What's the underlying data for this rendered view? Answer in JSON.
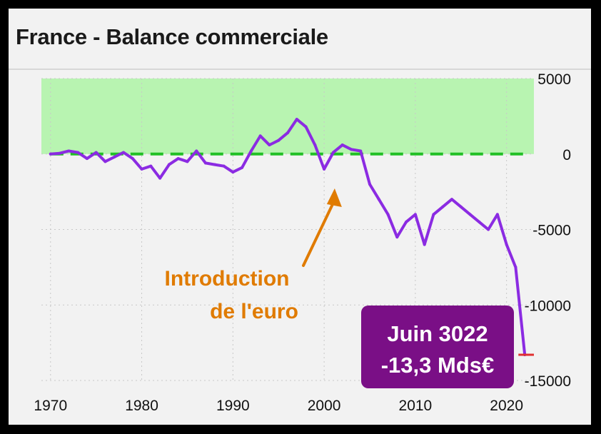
{
  "title": "France - Balance commerciale",
  "chart_data": {
    "type": "line",
    "title": "France - Balance commerciale",
    "xlabel": "",
    "ylabel": "",
    "xlim": [
      1969,
      2023
    ],
    "ylim": [
      -15000,
      5000
    ],
    "x_ticks": [
      1970,
      1980,
      1990,
      2000,
      2010,
      2020
    ],
    "y_ticks": [
      5000,
      0,
      -5000,
      -10000,
      -15000
    ],
    "y_tick_labels": [
      "5000",
      "0",
      "-5000",
      "-10000",
      "-15000"
    ],
    "grid": true,
    "colors": {
      "series": "#8b2be2",
      "positive_zone": "#aef5a6",
      "zero_line": "#22c026",
      "annotation": "#e07b00",
      "callout_bg": "#7a0f86",
      "last_value_line": "#e03030"
    },
    "series": [
      {
        "x": [
          1970,
          1971,
          1972,
          1973,
          1974,
          1975,
          1976,
          1977,
          1978,
          1979,
          1980,
          1981,
          1982,
          1983,
          1984,
          1985,
          1986,
          1987,
          1988,
          1989,
          1990,
          1991,
          1992,
          1993,
          1994,
          1995,
          1996,
          1997,
          1998,
          1999,
          2000,
          2001,
          2002,
          2003,
          2004,
          2005,
          2006,
          2007,
          2008,
          2009,
          2010,
          2011,
          2012,
          2013,
          2014,
          2015,
          2016,
          2017,
          2018,
          2019,
          2020,
          2021,
          2022
        ],
        "y": [
          0,
          50,
          200,
          100,
          -300,
          100,
          -500,
          -200,
          100,
          -300,
          -1000,
          -800,
          -1600,
          -700,
          -300,
          -500,
          200,
          -600,
          -700,
          -800,
          -1200,
          -900,
          200,
          1200,
          600,
          900,
          1400,
          2300,
          1800,
          600,
          -1000,
          100,
          600,
          300,
          200,
          -2000,
          -3000,
          -4000,
          -5500,
          -4500,
          -4000,
          -6000,
          -4000,
          -3500,
          -3000,
          -3500,
          -4000,
          -4500,
          -5000,
          -4000,
          -6000,
          -7500,
          -13300
        ]
      }
    ],
    "annotations": [
      {
        "text_line1": "Introduction",
        "text_line2": "de l'euro",
        "x": 2001,
        "y": -2000
      },
      {
        "text_line1": "Juin 3022",
        "text_line2": "-13,3 Mds€",
        "x": 2022,
        "y": -13300
      }
    ]
  }
}
